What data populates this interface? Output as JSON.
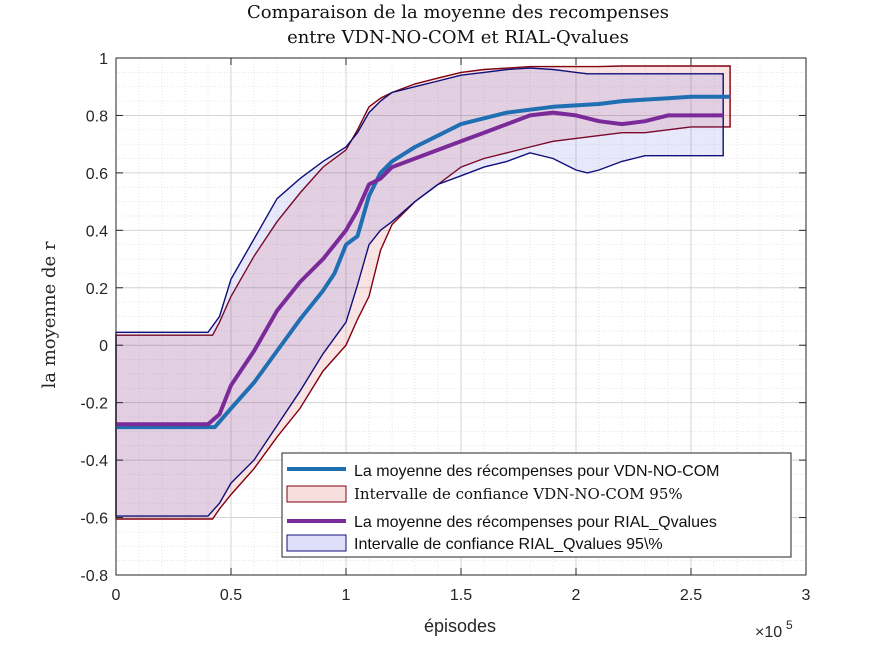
{
  "chart_data": {
    "type": "line",
    "title_line1": "Comparaison de la moyenne des recompenses",
    "title_line2": "entre VDN-NO-COM et RIAL-Qvalues",
    "xlabel": "épisodes",
    "ylabel": "la moyenne de r",
    "x_exponent_base": "×10",
    "x_exponent_power": "5",
    "xlim": [
      0,
      3
    ],
    "ylim": [
      -0.8,
      1
    ],
    "xticks": [
      0,
      0.5,
      1,
      1.5,
      2,
      2.5,
      3
    ],
    "xtick_labels": [
      "0",
      "0.5",
      "1",
      "1.5",
      "2",
      "2.5",
      "3"
    ],
    "yticks": [
      -0.8,
      -0.6,
      -0.4,
      -0.2,
      0,
      0.2,
      0.4,
      0.6,
      0.8,
      1
    ],
    "ytick_labels": [
      "-0.8",
      "-0.6",
      "-0.4",
      "-0.2",
      "0",
      "0.2",
      "0.4",
      "0.6",
      "0.8",
      "1"
    ],
    "grid": true,
    "minor_grid": true,
    "legend_position": "bottom-right",
    "legend": [
      "La moyenne des récompenses pour VDN-NO-COM",
      "Intervalle de confiance VDN-NO-COM 95%",
      "La moyenne des récompenses pour RIAL_Qvalues",
      "Intervalle de confiance RIAL_Qvalues 95\\%"
    ],
    "series": [
      {
        "type": "line",
        "color": "#1f6fb2",
        "x": [
          0,
          0.43,
          0.5,
          0.6,
          0.7,
          0.8,
          0.9,
          0.95,
          1.0,
          1.05,
          1.1,
          1.15,
          1.2,
          1.3,
          1.4,
          1.5,
          1.6,
          1.7,
          1.8,
          1.9,
          2.0,
          2.1,
          2.2,
          2.3,
          2.4,
          2.5,
          2.6,
          2.67
        ],
        "y": [
          -0.285,
          -0.285,
          -0.22,
          -0.13,
          -0.02,
          0.09,
          0.19,
          0.25,
          0.35,
          0.38,
          0.52,
          0.6,
          0.64,
          0.69,
          0.73,
          0.77,
          0.79,
          0.81,
          0.82,
          0.83,
          0.835,
          0.84,
          0.85,
          0.855,
          0.86,
          0.865,
          0.865,
          0.865
        ]
      },
      {
        "type": "band",
        "color": "#d42a2a",
        "edge_color": "#800010",
        "x": [
          0,
          0.42,
          0.45,
          0.5,
          0.6,
          0.7,
          0.8,
          0.9,
          1.0,
          1.05,
          1.1,
          1.15,
          1.2,
          1.3,
          1.4,
          1.5,
          1.6,
          1.7,
          1.8,
          1.9,
          2.0,
          2.1,
          2.2,
          2.3,
          2.4,
          2.5,
          2.6,
          2.67
        ],
        "upper": [
          0.035,
          0.035,
          0.08,
          0.17,
          0.31,
          0.43,
          0.53,
          0.62,
          0.68,
          0.75,
          0.83,
          0.86,
          0.88,
          0.91,
          0.93,
          0.95,
          0.96,
          0.965,
          0.97,
          0.97,
          0.97,
          0.97,
          0.972,
          0.972,
          0.972,
          0.972,
          0.972,
          0.972
        ],
        "lower": [
          -0.605,
          -0.605,
          -0.57,
          -0.52,
          -0.43,
          -0.32,
          -0.22,
          -0.09,
          0.0,
          0.09,
          0.17,
          0.33,
          0.42,
          0.5,
          0.56,
          0.62,
          0.65,
          0.67,
          0.69,
          0.71,
          0.72,
          0.73,
          0.74,
          0.74,
          0.75,
          0.76,
          0.76,
          0.76
        ]
      },
      {
        "type": "line",
        "color": "#7b2a9a",
        "x": [
          0,
          0.4,
          0.45,
          0.5,
          0.6,
          0.7,
          0.8,
          0.9,
          0.95,
          1.0,
          1.05,
          1.1,
          1.15,
          1.2,
          1.3,
          1.4,
          1.5,
          1.6,
          1.7,
          1.8,
          1.9,
          2.0,
          2.1,
          2.2,
          2.3,
          2.4,
          2.5,
          2.6,
          2.64
        ],
        "y": [
          -0.275,
          -0.275,
          -0.24,
          -0.14,
          -0.02,
          0.12,
          0.22,
          0.3,
          0.35,
          0.4,
          0.47,
          0.56,
          0.58,
          0.62,
          0.65,
          0.68,
          0.71,
          0.74,
          0.77,
          0.8,
          0.81,
          0.8,
          0.78,
          0.77,
          0.78,
          0.8,
          0.8,
          0.8,
          0.8
        ]
      },
      {
        "type": "band",
        "color": "#5050e0",
        "edge_color": "#10107a",
        "x": [
          0,
          0.4,
          0.45,
          0.5,
          0.6,
          0.7,
          0.8,
          0.9,
          1.0,
          1.05,
          1.1,
          1.15,
          1.2,
          1.3,
          1.4,
          1.5,
          1.6,
          1.7,
          1.8,
          1.9,
          1.95,
          2.0,
          2.05,
          2.1,
          2.2,
          2.3,
          2.4,
          2.5,
          2.6,
          2.64
        ],
        "upper": [
          0.045,
          0.045,
          0.1,
          0.23,
          0.37,
          0.51,
          0.58,
          0.64,
          0.69,
          0.74,
          0.81,
          0.85,
          0.88,
          0.9,
          0.92,
          0.94,
          0.95,
          0.96,
          0.965,
          0.96,
          0.955,
          0.95,
          0.945,
          0.945,
          0.945,
          0.945,
          0.945,
          0.945,
          0.945,
          0.945
        ],
        "lower": [
          -0.595,
          -0.595,
          -0.55,
          -0.48,
          -0.4,
          -0.28,
          -0.16,
          -0.03,
          0.08,
          0.21,
          0.35,
          0.4,
          0.43,
          0.5,
          0.56,
          0.59,
          0.62,
          0.64,
          0.67,
          0.65,
          0.63,
          0.61,
          0.6,
          0.61,
          0.64,
          0.66,
          0.66,
          0.66,
          0.66,
          0.66
        ]
      }
    ]
  }
}
